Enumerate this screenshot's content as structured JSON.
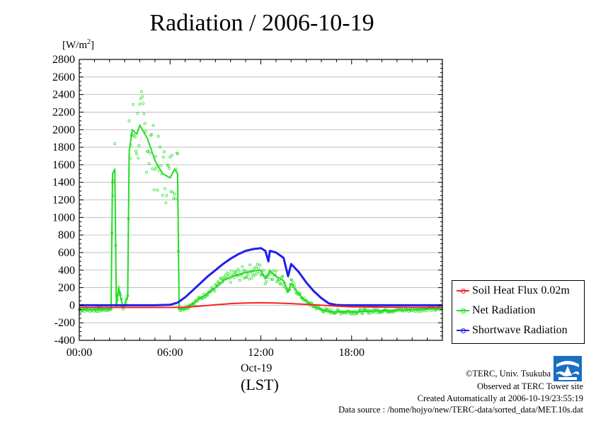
{
  "chart_data": {
    "type": "line",
    "title": "Radiation / 2006-10-19",
    "ylabel": "[W/m2]",
    "ylabel_base": "[W/m",
    "ylabel_sup": "2",
    "ylabel_tail": "]",
    "xlabel": "(LST)",
    "x_date_label": "Oct-19",
    "xlim": [
      0,
      24
    ],
    "ylim": [
      -400,
      2800
    ],
    "yticks": [
      "2800",
      "2600",
      "2400",
      "2200",
      "2000",
      "1800",
      "1600",
      "1400",
      "1200",
      "1000",
      "800",
      "600",
      "400",
      "200",
      "0",
      "-200",
      "-400"
    ],
    "xticks": [
      "00:00",
      "06:00",
      "12:00",
      "18:00"
    ],
    "grid": true,
    "legend_position": "bottom-right",
    "series": [
      {
        "name": "Soil Heat Flux 0.02m",
        "color": "#ff2020",
        "points": [
          [
            0,
            -25
          ],
          [
            2,
            -25
          ],
          [
            4,
            -25
          ],
          [
            6,
            -25
          ],
          [
            7,
            -22
          ],
          [
            8,
            -10
          ],
          [
            9,
            5
          ],
          [
            10,
            18
          ],
          [
            11,
            25
          ],
          [
            12,
            28
          ],
          [
            13,
            25
          ],
          [
            14,
            18
          ],
          [
            15,
            10
          ],
          [
            16,
            0
          ],
          [
            17,
            -10
          ],
          [
            18,
            -18
          ],
          [
            20,
            -22
          ],
          [
            22,
            -24
          ],
          [
            24,
            -25
          ]
        ]
      },
      {
        "name": "Net Radiation",
        "color": "#22dd22",
        "points": [
          [
            0,
            -50
          ],
          [
            1,
            -50
          ],
          [
            2,
            -45
          ],
          [
            2.1,
            -30
          ],
          [
            2.2,
            1500
          ],
          [
            2.35,
            1550
          ],
          [
            2.45,
            -10
          ],
          [
            2.6,
            200
          ],
          [
            2.9,
            -30
          ],
          [
            3.2,
            100
          ],
          [
            3.3,
            1750
          ],
          [
            3.5,
            2000
          ],
          [
            3.8,
            1950
          ],
          [
            4,
            2050
          ],
          [
            4.5,
            1900
          ],
          [
            5,
            1650
          ],
          [
            5.5,
            1500
          ],
          [
            6,
            1450
          ],
          [
            6.3,
            1550
          ],
          [
            6.5,
            1500
          ],
          [
            6.6,
            -40
          ],
          [
            7,
            -30
          ],
          [
            7.5,
            20
          ],
          [
            8,
            80
          ],
          [
            8.5,
            140
          ],
          [
            9,
            200
          ],
          [
            9.5,
            280
          ],
          [
            10,
            320
          ],
          [
            10.5,
            350
          ],
          [
            11,
            370
          ],
          [
            11.5,
            390
          ],
          [
            12,
            400
          ],
          [
            12.3,
            300
          ],
          [
            12.6,
            390
          ],
          [
            13,
            330
          ],
          [
            13.5,
            280
          ],
          [
            13.8,
            150
          ],
          [
            14,
            250
          ],
          [
            14.5,
            130
          ],
          [
            15,
            40
          ],
          [
            15.5,
            -10
          ],
          [
            16,
            -50
          ],
          [
            16.5,
            -70
          ],
          [
            17,
            -75
          ],
          [
            18,
            -75
          ],
          [
            19,
            -70
          ],
          [
            20,
            -60
          ],
          [
            21,
            -55
          ],
          [
            22,
            -50
          ],
          [
            23,
            -40
          ],
          [
            24,
            -45
          ]
        ]
      },
      {
        "name": "Shortwave Radiation",
        "color": "#2020ee",
        "points": [
          [
            0,
            0
          ],
          [
            5,
            0
          ],
          [
            6,
            5
          ],
          [
            6.5,
            30
          ],
          [
            7,
            90
          ],
          [
            7.5,
            170
          ],
          [
            8,
            250
          ],
          [
            8.5,
            330
          ],
          [
            9,
            400
          ],
          [
            9.5,
            470
          ],
          [
            10,
            530
          ],
          [
            10.5,
            580
          ],
          [
            11,
            620
          ],
          [
            11.5,
            640
          ],
          [
            12,
            650
          ],
          [
            12.3,
            620
          ],
          [
            12.5,
            500
          ],
          [
            12.6,
            620
          ],
          [
            13,
            600
          ],
          [
            13.5,
            540
          ],
          [
            13.8,
            330
          ],
          [
            14,
            470
          ],
          [
            14.5,
            380
          ],
          [
            15,
            260
          ],
          [
            15.5,
            160
          ],
          [
            16,
            80
          ],
          [
            16.5,
            20
          ],
          [
            17,
            3
          ],
          [
            17.5,
            0
          ],
          [
            24,
            0
          ]
        ]
      }
    ]
  },
  "credits": {
    "copyright": "©TERC, Univ. Tsukuba",
    "observed": "Observed at TERC Tower site",
    "created": "Created Automatically at 2006-10-19/23:55:19",
    "source": "Data source : /home/hojyo/new/TERC-data/sorted_data/MET.10s.dat"
  }
}
